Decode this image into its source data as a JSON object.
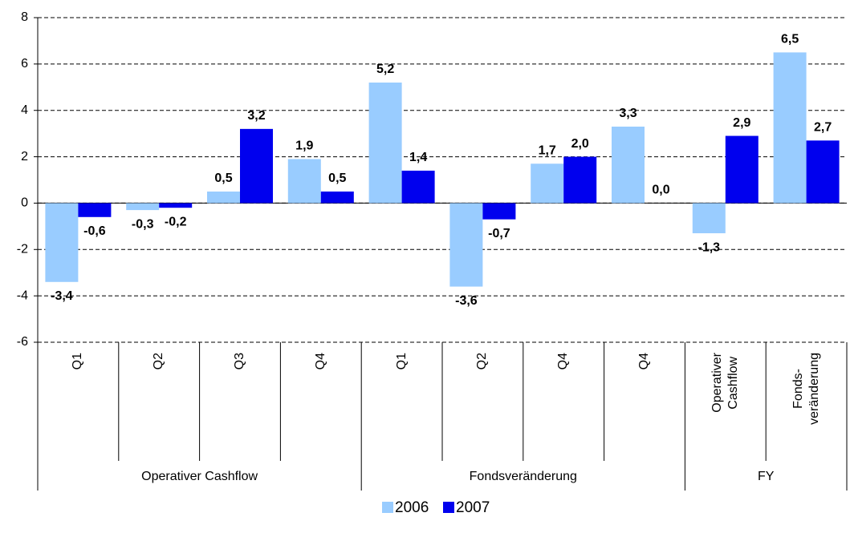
{
  "chart_data": {
    "type": "bar",
    "groups": [
      {
        "name": "Operativer Cashflow",
        "categories": [
          "Q1",
          "Q2",
          "Q3",
          "Q4"
        ]
      },
      {
        "name": "Fondsveränderung",
        "categories": [
          "Q1",
          "Q2",
          "Q4",
          "Q4"
        ]
      },
      {
        "name": "FY",
        "categories": [
          "Operativer\nCashflow",
          "Fonds-\nveränderung"
        ]
      }
    ],
    "series": [
      {
        "name": "2006",
        "color": "#99ccff",
        "values": [
          -3.4,
          -0.3,
          0.5,
          1.9,
          5.2,
          -3.6,
          1.7,
          3.3,
          -1.3,
          6.5
        ],
        "value_labels": [
          "-3,4",
          "-0,3",
          "0,5",
          "1,9",
          "5,2",
          "-3,6",
          "1,7",
          "3,3",
          "-1,3",
          "6,5"
        ]
      },
      {
        "name": "2007",
        "color": "#0000ee",
        "values": [
          -0.6,
          -0.2,
          3.2,
          0.5,
          1.4,
          -0.7,
          2.0,
          0.0,
          2.9,
          2.7
        ],
        "value_labels": [
          "-0,6",
          "-0,2",
          "3,2",
          "0,5",
          "1,4",
          "-0,7",
          "2,0",
          "0,0",
          "2,9",
          "2,7"
        ]
      }
    ],
    "ylim": [
      -6,
      8
    ],
    "yticks": [
      -6,
      -4,
      -2,
      0,
      2,
      4,
      6,
      8
    ],
    "grid": true,
    "legend": "bottom"
  }
}
